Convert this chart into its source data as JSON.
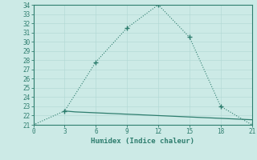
{
  "line1_x": [
    0,
    3,
    6,
    9,
    12,
    15,
    18,
    21
  ],
  "line1_y": [
    21,
    22.5,
    27.8,
    31.5,
    34,
    30.5,
    23.0,
    21
  ],
  "line2_x": [
    3,
    4,
    5,
    6,
    7,
    8,
    9,
    10,
    11,
    12,
    13,
    14,
    15,
    16,
    17,
    18,
    19,
    20,
    21
  ],
  "line2_y": [
    22.5,
    22.4,
    22.35,
    22.3,
    22.25,
    22.2,
    22.15,
    22.1,
    22.05,
    22.0,
    21.95,
    21.9,
    21.85,
    21.8,
    21.75,
    21.7,
    21.65,
    21.6,
    21.55
  ],
  "line_color": "#2e7d6e",
  "bg_color": "#cceae6",
  "grid_color": "#b0d8d3",
  "xlabel": "Humidex (Indice chaleur)",
  "xlim": [
    0,
    21
  ],
  "ylim": [
    21,
    34
  ],
  "xticks": [
    0,
    3,
    6,
    9,
    12,
    15,
    18,
    21
  ],
  "yticks": [
    21,
    22,
    23,
    24,
    25,
    26,
    27,
    28,
    29,
    30,
    31,
    32,
    33,
    34
  ],
  "marker_indices": [
    0,
    1,
    2,
    3,
    4,
    5,
    6,
    7
  ]
}
